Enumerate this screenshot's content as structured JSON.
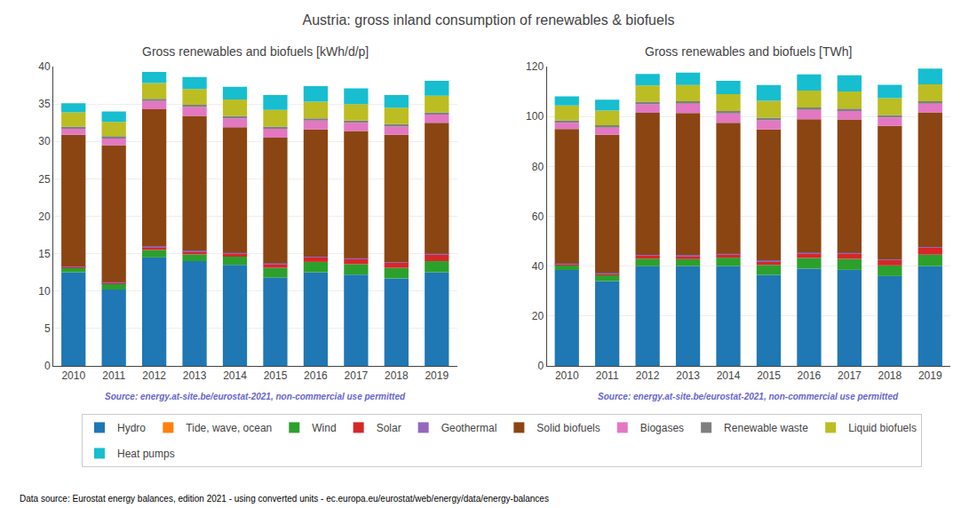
{
  "title": "Austria: gross inland consumption of renewables & biofuels",
  "legend": "bottom",
  "annotations": [
    {
      "text": "Data source: Eurostat energy balances, edition 2021 - using converted units - ec.europa.eu/eurostat/web/energy/data/energy-balances",
      "color": "#000000"
    }
  ],
  "chart_data": [
    {
      "type": "bar",
      "stacked": true,
      "grid": true,
      "title": "Gross renewables and biofuels [kWh/d/p]",
      "annotations": [
        {
          "text": "Source: energy.at-site.be/eurostat-2021, non-commercial use permitted",
          "color": "#6666cc"
        }
      ],
      "categories": [
        "2010",
        "2011",
        "2012",
        "2013",
        "2014",
        "2015",
        "2016",
        "2017",
        "2018",
        "2019"
      ],
      "ylim": [
        0,
        40
      ],
      "yticks": [
        0,
        5,
        10,
        15,
        20,
        25,
        30,
        35,
        40
      ],
      "series": [
        {
          "name": "Hydro",
          "color": "#1f77b4",
          "values": [
            12.5,
            10.2,
            14.5,
            14.0,
            13.5,
            11.8,
            12.5,
            12.2,
            11.7,
            12.5
          ]
        },
        {
          "name": "Tide, wave, ocean",
          "color": "#ff7f0e",
          "values": [
            0.0,
            0.0,
            0.0,
            0.0,
            0.0,
            0.0,
            0.0,
            0.0,
            0.0,
            0.0
          ]
        },
        {
          "name": "Wind",
          "color": "#2ca02c",
          "values": [
            0.6,
            0.8,
            1.0,
            0.9,
            1.1,
            1.3,
            1.4,
            1.4,
            1.4,
            1.5
          ]
        },
        {
          "name": "Solar",
          "color": "#d62728",
          "values": [
            0.1,
            0.1,
            0.4,
            0.4,
            0.4,
            0.5,
            0.6,
            0.7,
            0.7,
            0.9
          ]
        },
        {
          "name": "Geothermal",
          "color": "#9467bd",
          "values": [
            0.1,
            0.1,
            0.1,
            0.1,
            0.1,
            0.1,
            0.1,
            0.1,
            0.1,
            0.1
          ]
        },
        {
          "name": "Solid biofuels",
          "color": "#8B4513",
          "values": [
            17.6,
            18.3,
            18.3,
            18.0,
            16.8,
            16.8,
            17.0,
            17.0,
            17.0,
            17.5
          ]
        },
        {
          "name": "Biogases",
          "color": "#e377c2",
          "values": [
            0.8,
            0.9,
            1.1,
            1.2,
            1.2,
            1.2,
            1.2,
            1.1,
            1.1,
            1.1
          ]
        },
        {
          "name": "Renewable waste",
          "color": "#7f7f7f",
          "values": [
            0.3,
            0.3,
            0.3,
            0.3,
            0.3,
            0.3,
            0.3,
            0.3,
            0.3,
            0.3
          ]
        },
        {
          "name": "Liquid biofuels",
          "color": "#bcbd22",
          "values": [
            1.9,
            1.9,
            2.1,
            2.1,
            2.2,
            2.2,
            2.2,
            2.2,
            2.2,
            2.2
          ]
        },
        {
          "name": "Heat pumps",
          "color": "#17becf",
          "values": [
            1.2,
            1.4,
            1.5,
            1.6,
            1.7,
            2.0,
            2.1,
            2.1,
            1.7,
            2.0
          ]
        }
      ]
    },
    {
      "type": "bar",
      "stacked": true,
      "grid": true,
      "title": "Gross renewables and biofuels [TWh]",
      "annotations": [
        {
          "text": "Source: energy.at-site.be/eurostat-2021, non-commercial use permitted",
          "color": "#6666cc"
        }
      ],
      "categories": [
        "2010",
        "2011",
        "2012",
        "2013",
        "2014",
        "2015",
        "2016",
        "2017",
        "2018",
        "2019"
      ],
      "ylim": [
        0,
        120
      ],
      "yticks": [
        0,
        20,
        40,
        60,
        80,
        100,
        120
      ],
      "series": [
        {
          "name": "Hydro",
          "color": "#1f77b4",
          "values": [
            38.5,
            34.0,
            40.0,
            40.0,
            40.0,
            36.5,
            39.0,
            38.5,
            36.0,
            40.0
          ]
        },
        {
          "name": "Tide, wave, ocean",
          "color": "#ff7f0e",
          "values": [
            0.0,
            0.0,
            0.0,
            0.0,
            0.0,
            0.0,
            0.0,
            0.0,
            0.0,
            0.0
          ]
        },
        {
          "name": "Wind",
          "color": "#2ca02c",
          "values": [
            1.8,
            2.5,
            3.0,
            2.8,
            3.4,
            4.0,
            4.3,
            4.4,
            4.3,
            4.6
          ]
        },
        {
          "name": "Solar",
          "color": "#d62728",
          "values": [
            0.4,
            0.4,
            1.2,
            1.3,
            1.3,
            1.5,
            1.8,
            2.1,
            2.1,
            2.8
          ]
        },
        {
          "name": "Geothermal",
          "color": "#9467bd",
          "values": [
            0.3,
            0.3,
            0.3,
            0.3,
            0.3,
            0.3,
            0.3,
            0.3,
            0.3,
            0.3
          ]
        },
        {
          "name": "Solid biofuels",
          "color": "#8B4513",
          "values": [
            54.0,
            55.5,
            57.0,
            57.0,
            52.5,
            52.5,
            53.5,
            53.5,
            53.5,
            54.0
          ]
        },
        {
          "name": "Biogases",
          "color": "#e377c2",
          "values": [
            2.5,
            2.8,
            3.4,
            3.7,
            3.7,
            3.7,
            3.7,
            3.4,
            3.4,
            3.4
          ]
        },
        {
          "name": "Renewable waste",
          "color": "#7f7f7f",
          "values": [
            1.0,
            1.0,
            1.0,
            1.0,
            1.0,
            1.0,
            1.0,
            1.0,
            1.0,
            1.0
          ]
        },
        {
          "name": "Liquid biofuels",
          "color": "#bcbd22",
          "values": [
            5.9,
            5.9,
            6.5,
            6.5,
            6.8,
            6.8,
            6.8,
            6.8,
            6.8,
            6.8
          ]
        },
        {
          "name": "Heat pumps",
          "color": "#17becf",
          "values": [
            3.7,
            4.3,
            4.7,
            5.0,
            5.3,
            6.3,
            6.5,
            6.5,
            5.3,
            6.3
          ]
        }
      ]
    }
  ]
}
